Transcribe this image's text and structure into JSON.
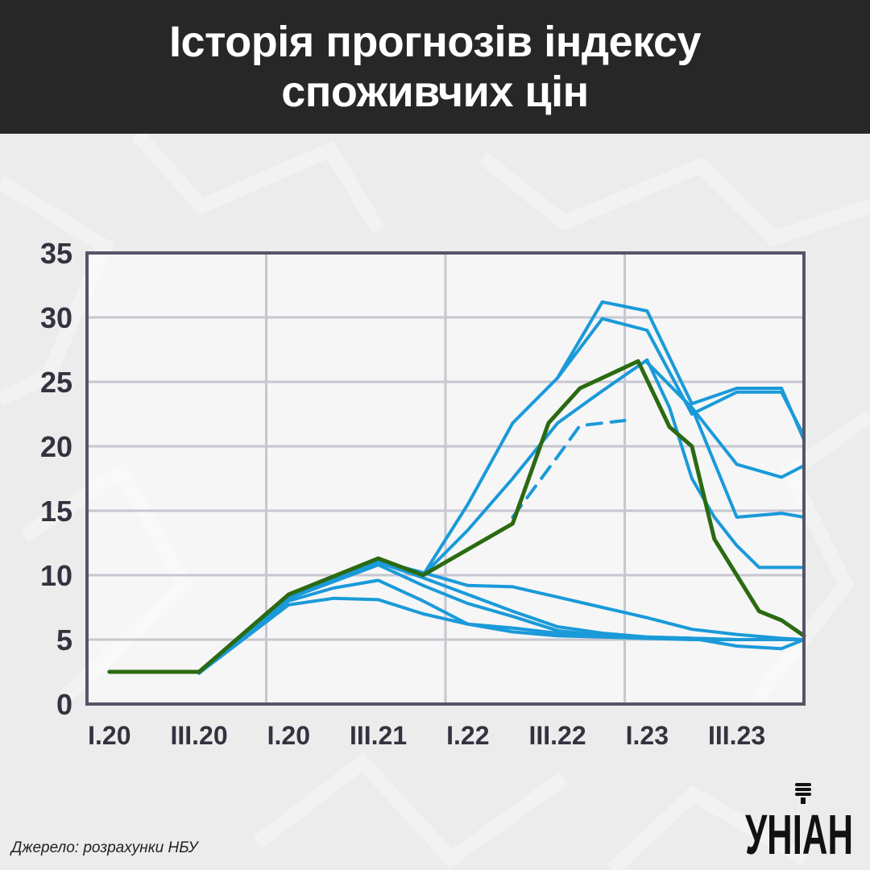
{
  "header": {
    "title_line1": "Історія прогнозів індексу",
    "title_line2": "споживчих цін"
  },
  "source": "Джерело: розрахунки НБУ",
  "logo": {
    "text": "УНІАН",
    "icon": "microphone-icon"
  },
  "colors": {
    "header_bg": "#272727",
    "forecast": "#1a9ad9",
    "actual": "#2b6a12",
    "grid": "#c7c7d0",
    "frame": "#55556a",
    "axis_text": "#333340"
  },
  "chart_data": {
    "type": "line",
    "title": "Історія прогнозів індексу споживчих цін",
    "xlabel": "",
    "ylabel": "",
    "x_tick_labels": [
      "I.20",
      "III.20",
      "I.20",
      "III.21",
      "I.22",
      "III.22",
      "I.23",
      "III.23"
    ],
    "x_range": [
      0,
      16
    ],
    "ylim": [
      0,
      35
    ],
    "y_ticks": [
      0,
      5,
      10,
      15,
      20,
      25,
      30,
      35
    ],
    "grid": true,
    "series": [
      {
        "name": "actual",
        "style": "solid",
        "color": "#2b6a12",
        "x": [
          0.5,
          2.5,
          4.5,
          6.5,
          7.5,
          8,
          9.5,
          10.3,
          11,
          12.3,
          13,
          13.5,
          14,
          15,
          15.5,
          16
        ],
        "y": [
          2.5,
          2.5,
          8.5,
          11.3,
          10,
          11,
          14,
          21.8,
          24.5,
          26.6,
          21.5,
          20,
          12.8,
          7.2,
          6.5,
          5.3
        ]
      },
      {
        "name": "forecast-1",
        "style": "solid",
        "color": "#1a9ad9",
        "x": [
          2.5,
          4.5,
          5.5,
          6.5,
          7.5,
          8.5,
          9.5,
          10.5,
          11.5,
          12.5,
          13.5,
          14.5,
          15.5,
          16
        ],
        "y": [
          2.4,
          7.7,
          8.2,
          8.1,
          7,
          6.2,
          5.9,
          5.5,
          5.4,
          5.2,
          5.1,
          5,
          5,
          5
        ]
      },
      {
        "name": "forecast-2",
        "style": "solid",
        "color": "#1a9ad9",
        "x": [
          2.5,
          4.5,
          5.5,
          6.5,
          7.5,
          8.5,
          9.5,
          10.5,
          11.5,
          12.5,
          13.5,
          14.5,
          15.5,
          16
        ],
        "y": [
          2.4,
          8,
          9,
          9.6,
          8,
          6.2,
          5.6,
          5.3,
          5.2,
          5.1,
          5,
          5,
          5,
          5
        ]
      },
      {
        "name": "forecast-3",
        "style": "solid",
        "color": "#1a9ad9",
        "x": [
          2.5,
          4.5,
          6.5,
          7.5,
          8.5,
          9.5,
          10.5,
          11.5,
          12.5,
          13.5,
          14.5,
          15.5,
          16
        ],
        "y": [
          2.4,
          8.2,
          10.8,
          9.2,
          7.8,
          6.8,
          5.7,
          5.3,
          5.1,
          5.1,
          5,
          5,
          5
        ]
      },
      {
        "name": "forecast-4",
        "style": "solid",
        "color": "#1a9ad9",
        "x": [
          2.5,
          4.5,
          6.5,
          7.5,
          8.5,
          9.5,
          10.5,
          11.5,
          12.5,
          13.5,
          14.5,
          15.5,
          16
        ],
        "y": [
          2.4,
          8.3,
          11,
          9.8,
          8.5,
          7.2,
          6,
          5.5,
          5.2,
          5.1,
          4.5,
          4.3,
          5
        ]
      },
      {
        "name": "forecast-5",
        "style": "solid",
        "color": "#1a9ad9",
        "x": [
          2.5,
          4.5,
          6.5,
          7.5,
          8.5,
          9.5,
          10.5,
          11.5,
          12.5,
          13.5,
          14.5,
          15.5,
          16
        ],
        "y": [
          2.4,
          8.3,
          11.1,
          10.2,
          9.2,
          9.1,
          8.3,
          7.5,
          6.7,
          5.8,
          5.4,
          5.1,
          5
        ]
      },
      {
        "name": "forecast-6",
        "style": "solid",
        "color": "#1a9ad9",
        "x": [
          7.5,
          8.5,
          9.5,
          10.5,
          11.5,
          12.5,
          13,
          13.5,
          14,
          14.5,
          15,
          15.5,
          16
        ],
        "y": [
          10,
          13.5,
          17.5,
          21.8,
          24.3,
          26.7,
          23,
          17.5,
          14.5,
          12.3,
          10.6,
          10.6,
          10.6
        ]
      },
      {
        "name": "forecast-7",
        "style": "solid",
        "color": "#1a9ad9",
        "x": [
          12.5,
          13.5,
          14.5,
          15.5,
          16
        ],
        "y": [
          26.5,
          23,
          14.5,
          14.8,
          14.5
        ]
      },
      {
        "name": "forecast-8",
        "style": "solid",
        "color": "#1a9ad9",
        "x": [
          12.5,
          13.5,
          14.5,
          15.5,
          16
        ],
        "y": [
          26.5,
          23,
          18.6,
          17.6,
          18.5
        ]
      },
      {
        "name": "forecast-9",
        "style": "solid",
        "color": "#1a9ad9",
        "x": [
          7.5,
          8.5,
          9.5,
          10.5,
          11.5,
          12.5,
          13.5,
          14.5,
          15.5,
          16
        ],
        "y": [
          10,
          15.5,
          21.8,
          25.3,
          29.9,
          29,
          22.5,
          24.2,
          24.2,
          20.8
        ]
      },
      {
        "name": "forecast-10",
        "style": "solid",
        "color": "#1a9ad9",
        "x": [
          10.5,
          11.5,
          12.5,
          13.5,
          14.5,
          15.5,
          16
        ],
        "y": [
          25.3,
          31.2,
          30.5,
          23.3,
          24.5,
          24.5,
          20.5
        ]
      },
      {
        "name": "forecast-11",
        "style": "dashed",
        "color": "#1a9ad9",
        "x": [
          9.5,
          10.5,
          11,
          11.5,
          12
        ],
        "y": [
          14.5,
          19.2,
          21.6,
          21.8,
          22
        ]
      }
    ]
  }
}
